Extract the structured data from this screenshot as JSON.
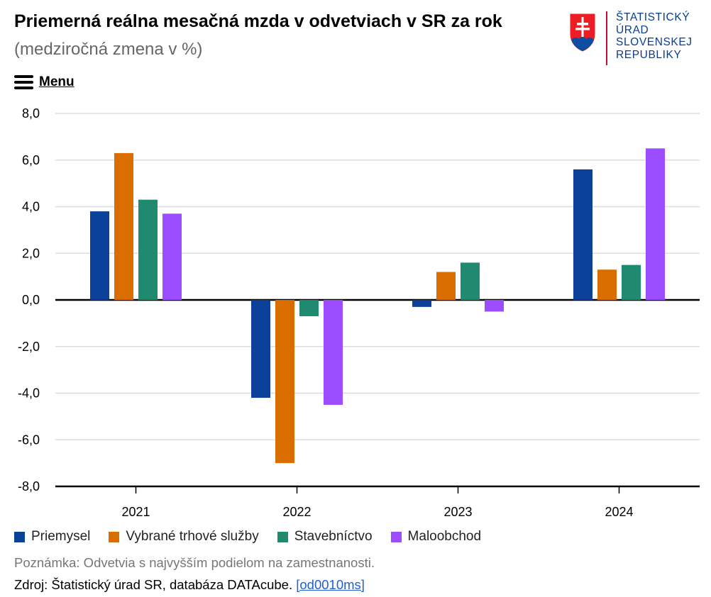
{
  "header": {
    "title": "Priemerná reálna mesačná mzda v odvetviach v SR za rok",
    "subtitle": "(medziročná zmena v %)"
  },
  "logo": {
    "lines": [
      "ŠTATISTICKÝ",
      "ÚRAD",
      "SLOVENSKEJ",
      "REPUBLIKY"
    ],
    "icon": "slovak-coat-of-arms",
    "colors": {
      "red": "#ee1c25",
      "blue": "#0b4ea2",
      "text": "#0b3c8c"
    }
  },
  "menu": {
    "label": "Menu",
    "icon": "hamburger-icon"
  },
  "chart_data": {
    "type": "bar",
    "title": "Priemerná reálna mesačná mzda v odvetviach v SR za rok",
    "subtitle": "(medziročná zmena v %)",
    "categories": [
      "2021",
      "2022",
      "2023",
      "2024"
    ],
    "series": [
      {
        "name": "Priemysel",
        "color": "#0c419a",
        "values": [
          3.8,
          -4.2,
          -0.3,
          5.6
        ]
      },
      {
        "name": "Vybrané trhové služby",
        "color": "#d96d00",
        "values": [
          6.3,
          -7.0,
          1.2,
          1.3
        ]
      },
      {
        "name": "Stavebníctvo",
        "color": "#1f8a70",
        "values": [
          4.3,
          -0.7,
          1.6,
          1.5
        ]
      },
      {
        "name": "Maloobchod",
        "color": "#9b4dff",
        "values": [
          3.7,
          -4.5,
          -0.5,
          6.5
        ]
      }
    ],
    "ylim": [
      -8,
      8
    ],
    "yticks": [
      "8,0",
      "6,0",
      "4,0",
      "2,0",
      "0,0",
      "-2,0",
      "-4,0",
      "-6,0",
      "-8,0"
    ],
    "grid": true,
    "legend": "bottom",
    "xlabel": "",
    "ylabel": ""
  },
  "footer": {
    "note": "Poznámka: Odvetvia s najvyšším podielom na zamestnanosti.",
    "source_prefix": "Zdroj: Štatistický úrad SR, databáza DATAcube.",
    "source_link": "[od0010ms]"
  }
}
